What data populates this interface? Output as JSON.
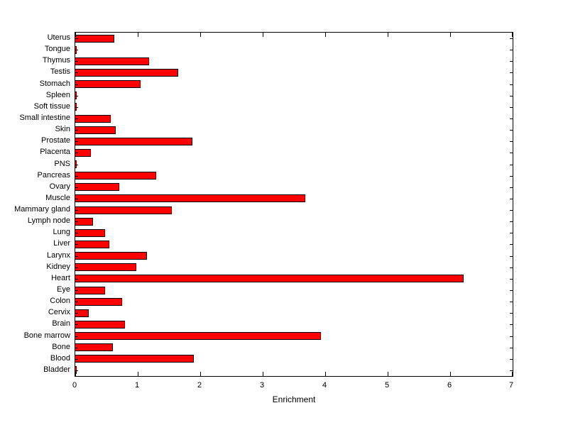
{
  "chart_data": {
    "type": "bar",
    "orientation": "horizontal",
    "title": "",
    "xlabel": "Enrichment",
    "ylabel": "",
    "xlim": [
      0,
      7
    ],
    "xticks": [
      0,
      1,
      2,
      3,
      4,
      5,
      6,
      7
    ],
    "grid": false,
    "legend": false,
    "bar_color": "#ff0000",
    "bar_edge_color": "#000000",
    "categories_top_to_bottom": [
      "Uterus",
      "Tongue",
      "Thymus",
      "Testis",
      "Stomach",
      "Spleen",
      "Soft tissue",
      "Small intestine",
      "Skin",
      "Prostate",
      "Placenta",
      "PNS",
      "Pancreas",
      "Ovary",
      "Muscle",
      "Mammary gland",
      "Lymph node",
      "Lung",
      "Liver",
      "Larynx",
      "Kidney",
      "Heart",
      "Eye",
      "Colon",
      "Cervix",
      "Brain",
      "Bone marrow",
      "Bone",
      "Blood",
      "Bladder"
    ],
    "values": [
      0.62,
      0.02,
      1.18,
      1.65,
      1.05,
      0.02,
      0.02,
      0.57,
      0.65,
      1.87,
      0.25,
      0.02,
      1.3,
      0.7,
      3.68,
      1.55,
      0.28,
      0.48,
      0.55,
      1.15,
      0.98,
      6.22,
      0.48,
      0.75,
      0.22,
      0.8,
      3.93,
      0.6,
      1.9,
      0.02
    ]
  }
}
